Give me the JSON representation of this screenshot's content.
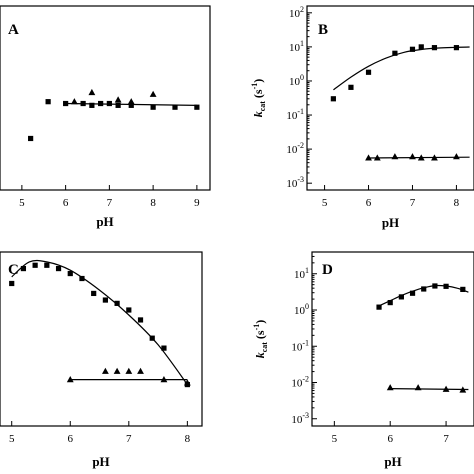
{
  "chart_data": [
    {
      "panel": "A",
      "type": "scatter",
      "xlabel": "pH",
      "ylabel": "",
      "xlim": [
        4.5,
        9.3
      ],
      "ylim": [
        0,
        10
      ],
      "xticks": [
        5,
        6,
        7,
        8,
        9
      ],
      "yticks": [],
      "series": [
        {
          "marker": "square",
          "points": [
            [
              5.2,
              2.8
            ],
            [
              5.6,
              4.8
            ],
            [
              6.0,
              4.7
            ],
            [
              6.4,
              4.7
            ],
            [
              6.6,
              4.6
            ],
            [
              6.8,
              4.7
            ],
            [
              7.0,
              4.7
            ],
            [
              7.2,
              4.6
            ],
            [
              7.5,
              4.6
            ],
            [
              8.0,
              4.5
            ],
            [
              8.5,
              4.5
            ],
            [
              9.0,
              4.5
            ]
          ]
        },
        {
          "marker": "triangle",
          "points": [
            [
              6.2,
              4.8
            ],
            [
              6.6,
              5.3
            ],
            [
              7.2,
              4.9
            ],
            [
              7.5,
              4.8
            ],
            [
              8.0,
              5.2
            ]
          ]
        }
      ],
      "fits": [
        {
          "type": "linear",
          "points": [
            [
              6.0,
              4.7
            ],
            [
              9.0,
              4.6
            ]
          ]
        }
      ]
    },
    {
      "panel": "B",
      "type": "scatter",
      "xlabel": "pH",
      "ylabel": "k_cat (s^-1)",
      "ylabel_main": "k",
      "ylabel_sub": "cat",
      "ylabel_unit": "(s",
      "ylabel_sup": "-1",
      "ylabel_close": ")",
      "yscale": "log",
      "xlim": [
        4.6,
        8.4
      ],
      "ylim": [
        -3.2,
        2.2
      ],
      "xticks": [
        5,
        6,
        7,
        8
      ],
      "yticks": [
        {
          "exp": -3,
          "base": "10",
          "sup": "-3"
        },
        {
          "exp": -2,
          "base": "10",
          "sup": "-2"
        },
        {
          "exp": -1,
          "base": "10",
          "sup": "-1"
        },
        {
          "exp": 0,
          "base": "10",
          "sup": "0"
        },
        {
          "exp": 1,
          "base": "10",
          "sup": "1"
        },
        {
          "exp": 2,
          "base": "10",
          "sup": "2"
        }
      ],
      "series": [
        {
          "marker": "square",
          "points": [
            [
              5.2,
              0.3
            ],
            [
              5.6,
              0.65
            ],
            [
              6.0,
              1.8
            ],
            [
              6.6,
              6.5
            ],
            [
              7.0,
              8.5
            ],
            [
              7.2,
              10
            ],
            [
              7.5,
              9.5
            ],
            [
              8.0,
              9.5
            ]
          ]
        },
        {
          "marker": "triangle",
          "points": [
            [
              6.0,
              0.0055
            ],
            [
              6.2,
              0.0055
            ],
            [
              6.6,
              0.006
            ],
            [
              7.0,
              0.006
            ],
            [
              7.2,
              0.0055
            ],
            [
              7.5,
              0.0055
            ],
            [
              8.0,
              0.006
            ]
          ]
        }
      ],
      "fits": [
        {
          "type": "curve",
          "points": [
            [
              5.2,
              0.55
            ],
            [
              5.6,
              1.3
            ],
            [
              6.0,
              2.7
            ],
            [
              6.4,
              4.7
            ],
            [
              6.8,
              6.9
            ],
            [
              7.2,
              8.4
            ],
            [
              7.6,
              9.3
            ],
            [
              8.0,
              9.7
            ],
            [
              8.3,
              9.9
            ]
          ]
        },
        {
          "type": "linear",
          "points": [
            [
              6.0,
              0.0055
            ],
            [
              8.3,
              0.0058
            ]
          ]
        }
      ]
    },
    {
      "panel": "C",
      "type": "scatter",
      "xlabel": "pH",
      "ylabel": "",
      "xlim": [
        4.8,
        8.25
      ],
      "ylim": [
        -0.5,
        10
      ],
      "xticks": [
        5,
        6,
        7,
        8
      ],
      "yticks": [],
      "series": [
        {
          "marker": "square",
          "points": [
            [
              5.0,
              8.1
            ],
            [
              5.2,
              9.0
            ],
            [
              5.4,
              9.2
            ],
            [
              5.6,
              9.2
            ],
            [
              5.8,
              9.0
            ],
            [
              6.0,
              8.7
            ],
            [
              6.2,
              8.4
            ],
            [
              6.4,
              7.5
            ],
            [
              6.6,
              7.1
            ],
            [
              6.8,
              6.9
            ],
            [
              7.0,
              6.5
            ],
            [
              7.2,
              5.9
            ],
            [
              7.4,
              4.8
            ],
            [
              7.6,
              4.2
            ],
            [
              8.0,
              2.0
            ]
          ]
        },
        {
          "marker": "triangle",
          "points": [
            [
              6.0,
              2.3
            ],
            [
              6.6,
              2.8
            ],
            [
              6.8,
              2.8
            ],
            [
              7.0,
              2.8
            ],
            [
              7.2,
              2.8
            ],
            [
              7.6,
              2.3
            ],
            [
              8.0,
              2.1
            ]
          ]
        }
      ],
      "fits": [
        {
          "type": "curve",
          "points": [
            [
              5.0,
              8.5
            ],
            [
              5.3,
              9.4
            ],
            [
              5.6,
              9.4
            ],
            [
              6.0,
              8.9
            ],
            [
              6.5,
              7.7
            ],
            [
              7.0,
              6.2
            ],
            [
              7.5,
              4.4
            ],
            [
              8.0,
              2.0
            ]
          ]
        },
        {
          "type": "linear",
          "points": [
            [
              6.0,
              2.3
            ],
            [
              8.0,
              2.3
            ]
          ]
        }
      ]
    },
    {
      "panel": "D",
      "type": "scatter",
      "xlabel": "pH",
      "ylabel": "k_cat (s^-1)",
      "ylabel_main": "k",
      "ylabel_sub": "cat",
      "ylabel_unit": "(s",
      "ylabel_sup": "-1",
      "ylabel_close": ")",
      "yscale": "log",
      "xlim": [
        4.6,
        7.5
      ],
      "ylim": [
        -3.2,
        1.6
      ],
      "xticks": [
        5,
        6,
        7
      ],
      "yticks": [
        {
          "exp": -3,
          "base": "10",
          "sup": "-3"
        },
        {
          "exp": -2,
          "base": "10",
          "sup": "-2"
        },
        {
          "exp": -1,
          "base": "10",
          "sup": "-1"
        },
        {
          "exp": 0,
          "base": "10",
          "sup": "0"
        },
        {
          "exp": 1,
          "base": "10",
          "sup": "1"
        }
      ],
      "series": [
        {
          "marker": "square",
          "points": [
            [
              5.8,
              1.2
            ],
            [
              6.0,
              1.6
            ],
            [
              6.2,
              2.3
            ],
            [
              6.4,
              2.9
            ],
            [
              6.6,
              3.8
            ],
            [
              6.8,
              4.6
            ],
            [
              7.0,
              4.5
            ],
            [
              7.3,
              3.7
            ]
          ]
        },
        {
          "marker": "triangle",
          "points": [
            [
              6.0,
              0.0072
            ],
            [
              6.5,
              0.0072
            ],
            [
              7.0,
              0.0065
            ],
            [
              7.3,
              0.0062
            ]
          ]
        }
      ],
      "fits": [
        {
          "type": "curve",
          "points": [
            [
              5.8,
              1.3
            ],
            [
              6.0,
              1.8
            ],
            [
              6.2,
              2.5
            ],
            [
              6.4,
              3.3
            ],
            [
              6.6,
              4.1
            ],
            [
              6.8,
              4.7
            ],
            [
              7.0,
              4.6
            ],
            [
              7.2,
              4.0
            ],
            [
              7.4,
              3.1
            ]
          ]
        },
        {
          "type": "linear",
          "points": [
            [
              6.0,
              0.0068
            ],
            [
              7.4,
              0.0064
            ]
          ]
        }
      ]
    }
  ]
}
